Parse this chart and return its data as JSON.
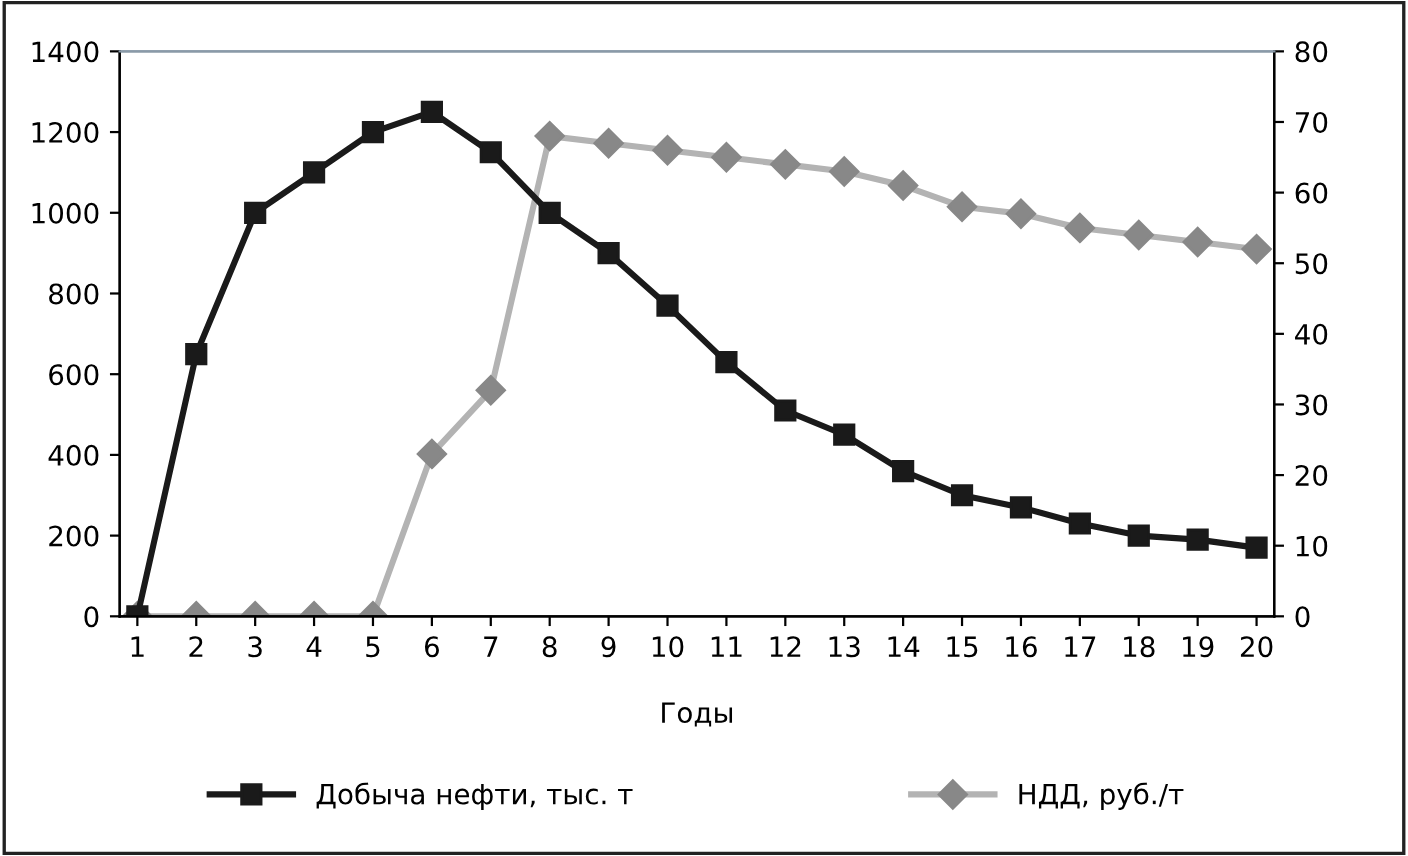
{
  "chart_data": {
    "type": "line",
    "xlabel": "Годы",
    "categories": [
      "1",
      "2",
      "3",
      "4",
      "5",
      "6",
      "7",
      "8",
      "9",
      "10",
      "11",
      "12",
      "13",
      "14",
      "15",
      "16",
      "17",
      "18",
      "19",
      "20"
    ],
    "series": [
      {
        "name": "Добыча нефти, тыс. т",
        "color": "#1a1a1a",
        "marker": "square",
        "values": [
          0,
          650,
          1000,
          1100,
          1200,
          1250,
          1150,
          1000,
          900,
          770,
          630,
          510,
          450,
          360,
          300,
          270,
          230,
          200,
          190,
          170
        ]
      },
      {
        "name": "НДД, руб./т",
        "color": "#b3b3b3",
        "marker": "diamond",
        "axis": "y2",
        "values": [
          0,
          0,
          0,
          0,
          0,
          23,
          32,
          68,
          67,
          66,
          65,
          64,
          63,
          61,
          58,
          57,
          55,
          54,
          53,
          52
        ]
      }
    ],
    "ylim": [
      0,
      1400
    ],
    "yticks": [
      0,
      200,
      400,
      600,
      800,
      1000,
      1200,
      1400
    ],
    "y2lim": [
      0,
      80
    ],
    "y2ticks": [
      0,
      10,
      20,
      30,
      40,
      50,
      60,
      70,
      80
    ],
    "grid": false,
    "legend": "bottom",
    "line_style": "solid"
  }
}
